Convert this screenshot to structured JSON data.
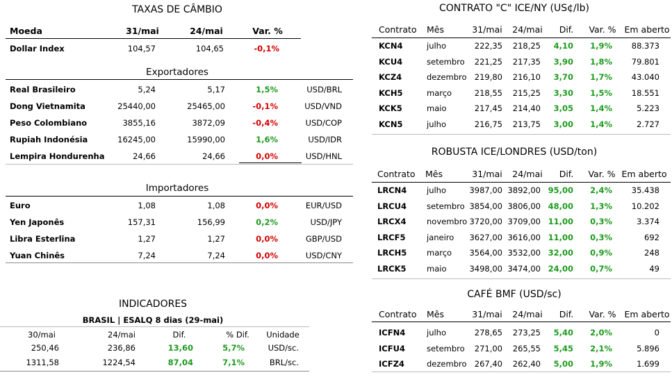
{
  "fx": {
    "title": "TAXAS DE CÂMBIO",
    "headers": [
      "Moeda",
      "31/mai",
      "24/mai",
      "Var. %"
    ],
    "dollar_index": {
      "name": "Dollar Index",
      "v1": "104,57",
      "v2": "104,65",
      "var": "-0,1%"
    },
    "exporters_title": "Exportadores",
    "exporters": [
      {
        "name": "Real Brasileiro",
        "v1": "5,24",
        "v2": "5,17",
        "var": "1,5%",
        "pair": "USD/BRL",
        "tone": "pos"
      },
      {
        "name": "Dong Vietnamita",
        "v1": "25440,00",
        "v2": "25465,00",
        "var": "-0,1%",
        "pair": "USD/VND",
        "tone": "neg"
      },
      {
        "name": "Peso Colombiano",
        "v1": "3855,16",
        "v2": "3872,09",
        "var": "-0,4%",
        "pair": "USD/COP",
        "tone": "neg"
      },
      {
        "name": "Rupiah Indonésia",
        "v1": "16245,00",
        "v2": "15990,00",
        "var": "1,6%",
        "pair": "USD/IDR",
        "tone": "pos"
      },
      {
        "name": "Lempira Hondurenha",
        "v1": "24,66",
        "v2": "24,66",
        "var": "0,0%",
        "pair": "USD/HNL",
        "tone": "zero"
      }
    ],
    "importers_title": "Importadores",
    "importers": [
      {
        "name": "Euro",
        "v1": "1,08",
        "v2": "1,08",
        "var": "0,0%",
        "pair": "EUR/USD",
        "tone": "zero"
      },
      {
        "name": "Yen Japonês",
        "v1": "157,31",
        "v2": "156,99",
        "var": "0,2%",
        "pair": "USD/JPY",
        "tone": "pos"
      },
      {
        "name": "Libra Esterlina",
        "v1": "1,27",
        "v2": "1,27",
        "var": "0,0%",
        "pair": "GBP/USD",
        "tone": "zero"
      },
      {
        "name": "Yuan Chinês",
        "v1": "7,24",
        "v2": "7,24",
        "var": "0,0%",
        "pair": "USD/CNY",
        "tone": "zero"
      }
    ]
  },
  "indicators": {
    "title": "INDICADORES",
    "subtitle": "BRASIL | ESALQ 8 dias (29-mai)",
    "headers": [
      "30/mai",
      "24/mai",
      "Dif.",
      "% Dif.",
      "Unidade"
    ],
    "rows": [
      {
        "v1": "250,46",
        "v2": "236,86",
        "dif": "13,60",
        "pct": "5,7%",
        "unit": "USD/sc."
      },
      {
        "v1": "1311,58",
        "v2": "1224,54",
        "dif": "87,04",
        "pct": "7,1%",
        "unit": "BRL/sc."
      }
    ]
  },
  "contract_c": {
    "title": "CONTRATO \"C\" ICE/NY (US¢/lb)",
    "headers": [
      "Contrato",
      "Mês",
      "31/mai",
      "24/mai",
      "Dif.",
      "Var. %",
      "Em aberto"
    ],
    "rows": [
      {
        "code": "KCN4",
        "month": "julho",
        "v1": "222,35",
        "v2": "218,25",
        "dif": "4,10",
        "var": "1,9%",
        "open": "88.373"
      },
      {
        "code": "KCU4",
        "month": "setembro",
        "v1": "221,25",
        "v2": "217,35",
        "dif": "3,90",
        "var": "1,8%",
        "open": "79.801"
      },
      {
        "code": "KCZ4",
        "month": "dezembro",
        "v1": "219,80",
        "v2": "216,10",
        "dif": "3,70",
        "var": "1,7%",
        "open": "43.040"
      },
      {
        "code": "KCH5",
        "month": "março",
        "v1": "218,55",
        "v2": "215,25",
        "dif": "3,30",
        "var": "1,5%",
        "open": "18.551"
      },
      {
        "code": "KCK5",
        "month": "maio",
        "v1": "217,45",
        "v2": "214,40",
        "dif": "3,05",
        "var": "1,4%",
        "open": "5.223"
      },
      {
        "code": "KCN5",
        "month": "julho",
        "v1": "216,75",
        "v2": "213,75",
        "dif": "3,00",
        "var": "1,4%",
        "open": "2.727"
      }
    ]
  },
  "robusta": {
    "title": "ROBUSTA ICE/LONDRES (USD/ton)",
    "headers": [
      "Contrato",
      "Mês",
      "31/mai",
      "24/mai",
      "Dif.",
      "Var. %",
      "Em aberto"
    ],
    "rows": [
      {
        "code": "LRCN4",
        "month": "julho",
        "v1": "3987,00",
        "v2": "3892,00",
        "dif": "95,00",
        "var": "2,4%",
        "open": "35.438"
      },
      {
        "code": "LRCU4",
        "month": "setembro",
        "v1": "3854,00",
        "v2": "3806,00",
        "dif": "48,00",
        "var": "1,3%",
        "open": "10.202"
      },
      {
        "code": "LRCX4",
        "month": "novembro",
        "v1": "3720,00",
        "v2": "3709,00",
        "dif": "11,00",
        "var": "0,3%",
        "open": "3.374"
      },
      {
        "code": "LRCF5",
        "month": "janeiro",
        "v1": "3627,00",
        "v2": "3616,00",
        "dif": "11,00",
        "var": "0,3%",
        "open": "692"
      },
      {
        "code": "LRCH5",
        "month": "março",
        "v1": "3564,00",
        "v2": "3532,00",
        "dif": "32,00",
        "var": "0,9%",
        "open": "248"
      },
      {
        "code": "LRCK5",
        "month": "maio",
        "v1": "3498,00",
        "v2": "3474,00",
        "dif": "24,00",
        "var": "0,7%",
        "open": "49"
      }
    ]
  },
  "bmf": {
    "title": "CAFÉ BMF (USD/sc)",
    "headers": [
      "Contrato",
      "Mês",
      "31/mai",
      "24/mai",
      "Dif.",
      "Var. %",
      "Em aberto"
    ],
    "rows": [
      {
        "code": "ICFN4",
        "month": "julho",
        "v1": "278,65",
        "v2": "273,25",
        "dif": "5,40",
        "var": "2,0%",
        "open": "0"
      },
      {
        "code": "ICFU4",
        "month": "setembro",
        "v1": "271,00",
        "v2": "265,55",
        "dif": "5,45",
        "var": "2,1%",
        "open": "5.896"
      },
      {
        "code": "ICFZ4",
        "month": "dezembro",
        "v1": "267,40",
        "v2": "262,40",
        "dif": "5,00",
        "var": "1,9%",
        "open": "1.699"
      }
    ]
  },
  "colors": {
    "positive": "#1f9a1f",
    "negative": "#d40000"
  }
}
